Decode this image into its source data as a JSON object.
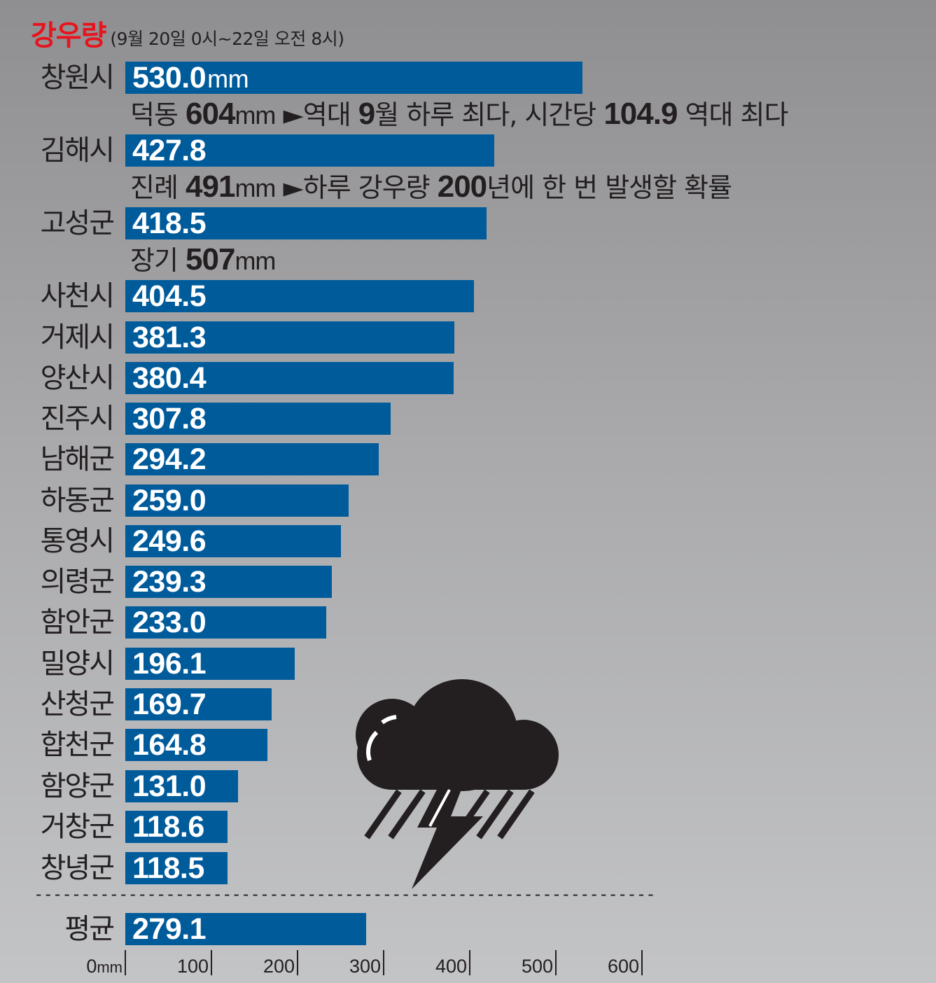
{
  "chart_data": {
    "type": "bar",
    "orientation": "horizontal",
    "title": "강우량",
    "subtitle": "(9월 20일 0시~22일 오전 8시)",
    "unit": "mm",
    "categories": [
      "창원시",
      "김해시",
      "고성군",
      "사천시",
      "거제시",
      "양산시",
      "진주시",
      "남해군",
      "하동군",
      "통영시",
      "의령군",
      "함안군",
      "밀양시",
      "산청군",
      "합천군",
      "함양군",
      "거창군",
      "창녕군"
    ],
    "values": [
      530.0,
      427.8,
      418.5,
      404.5,
      381.3,
      380.4,
      307.8,
      294.2,
      259.0,
      249.6,
      239.3,
      233.0,
      196.1,
      169.7,
      164.8,
      131.0,
      118.6,
      118.5
    ],
    "value_labels": [
      "530.0",
      "427.8",
      "418.5",
      "404.5",
      "381.3",
      "380.4",
      "307.8",
      "294.2",
      "259.0",
      "249.6",
      "239.3",
      "233.0",
      "196.1",
      "169.7",
      "164.8",
      "131.0",
      "118.6",
      "118.5"
    ],
    "average": {
      "label": "평균",
      "value": 279.1,
      "value_label": "279.1"
    },
    "annotations": [
      {
        "after": "창원시",
        "place": "덕동",
        "amount": "604",
        "unit": "mm",
        "marker": "►",
        "pre_bold": "역대 ",
        "bold": "9",
        "mid": "월 하루 최다, 시간당 ",
        "bold2": "104.9",
        "post": " 역대 최다"
      },
      {
        "after": "김해시",
        "place": "진례",
        "amount": "491",
        "unit": "mm",
        "marker": "►",
        "pre_bold": "하루 강우량 ",
        "bold": "200",
        "mid": "년에 한 번 발생할 확률",
        "bold2": "",
        "post": ""
      },
      {
        "after": "고성군",
        "place": "장기",
        "amount": "507",
        "unit": "mm",
        "marker": "",
        "pre_bold": "",
        "bold": "",
        "mid": "",
        "bold2": "",
        "post": ""
      }
    ],
    "xlim": [
      0,
      600
    ],
    "ticks": [
      0,
      100,
      200,
      300,
      400,
      500,
      600
    ],
    "tick_labels": [
      "0",
      "100",
      "200",
      "300",
      "400",
      "500",
      "600"
    ],
    "grid": false,
    "legend": "none",
    "colors": {
      "bar": "#005b9b",
      "title": "#e8141d",
      "text": "#231f20",
      "value_text": "#ffffff"
    },
    "icon": "thunderstorm-cloud-icon"
  }
}
